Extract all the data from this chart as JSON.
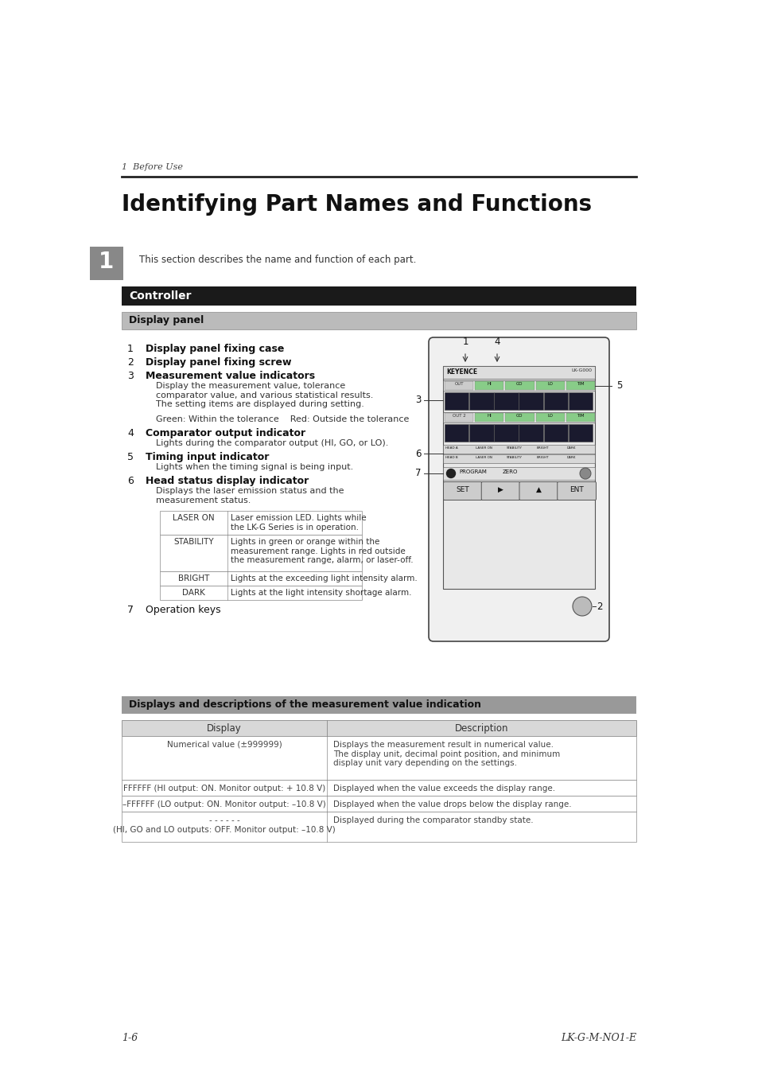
{
  "page_bg": "#ffffff",
  "header_text": "1  Before Use",
  "title": "Identifying Part Names and Functions",
  "section_num": "1",
  "section_num_bg": "#888888",
  "intro_text": "This section describes the name and function of each part.",
  "controller_header": "Controller",
  "controller_header_bg": "#1a1a1a",
  "controller_header_color": "#ffffff",
  "display_panel_header": "Display panel",
  "display_panel_bg": "#bbbbbb",
  "inner_table_rows": [
    {
      "col1": "LASER ON",
      "col2": "Laser emission LED. Lights while\nthe LK-G Series is in operation."
    },
    {
      "col1": "STABILITY",
      "col2": "Lights in green or orange within the\nmeasurement range. Lights in red outside\nthe measurement range, alarm, or laser-off."
    },
    {
      "col1": "BRIGHT",
      "col2": "Lights at the exceeding light intensity alarm."
    },
    {
      "col1": "DARK",
      "col2": "Lights at the light intensity shortage alarm."
    }
  ],
  "section2_header": "Displays and descriptions of the measurement value indication",
  "section2_header_bg": "#999999",
  "table2_col_headers": [
    "Display",
    "Description"
  ],
  "table2_rows": [
    {
      "col1": "Numerical value (±999999)",
      "col2": "Displays the measurement result in numerical value.\nThe display unit, decimal point position, and minimum\ndisplay unit vary depending on the settings."
    },
    {
      "col1": "FFFFFF (HI output: ON. Monitor output: + 10.8 V)",
      "col2": "Displayed when the value exceeds the display range."
    },
    {
      "col1": "–FFFFFF (LO output: ON. Monitor output: –10.8 V)",
      "col2": "Displayed when the value drops below the display range."
    },
    {
      "col1": "- - - - - -\n(HI, GO and LO outputs: OFF. Monitor output: –10.8 V)",
      "col2": "Displayed during the comparator standby state."
    }
  ],
  "footer_left": "1-6",
  "footer_right": "LK-G-M-NO1-E"
}
